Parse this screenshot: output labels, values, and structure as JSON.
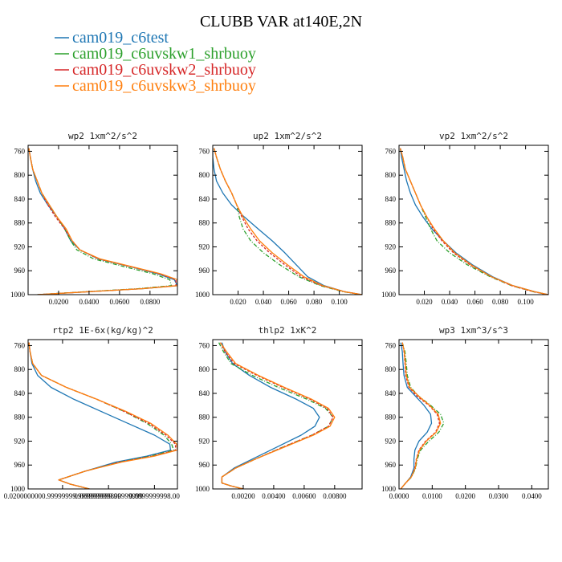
{
  "figure": {
    "title": "CLUBB VAR at140E,2N"
  },
  "legend": [
    {
      "name": "cam019_c6test",
      "color": "#1f77b4"
    },
    {
      "name": "cam019_c6uvskw1_shrbuoy",
      "color": "#2ca02c"
    },
    {
      "name": "cam019_c6uvskw2_shrbuoy",
      "color": "#d62728"
    },
    {
      "name": "cam019_c6uvskw3_shrbuoy",
      "color": "#ff7f0e"
    }
  ],
  "chart_data": [
    {
      "type": "line",
      "title": "wp2   1xm^2/s^2",
      "xlim": [
        0,
        0.098
      ],
      "ylim": [
        1000,
        750
      ],
      "xticks": [
        0.02,
        0.04,
        0.06,
        0.08
      ],
      "xtick_labels": [
        "0.0200",
        "0.0400",
        "0.0600",
        "0.0800"
      ],
      "yticks": [
        760,
        800,
        840,
        880,
        920,
        960,
        1000
      ],
      "y": [
        755,
        770,
        790,
        810,
        830,
        850,
        870,
        890,
        910,
        925,
        940,
        955,
        965,
        975,
        985,
        990,
        995,
        1000
      ],
      "series": [
        {
          "name": "cam019_c6test",
          "color": "#1f77b4",
          "dash": "",
          "values": [
            0.0005,
            0.0015,
            0.003,
            0.005,
            0.008,
            0.013,
            0.019,
            0.024,
            0.028,
            0.034,
            0.046,
            0.07,
            0.085,
            0.096,
            0.098,
            0.075,
            0.04,
            0.006
          ]
        },
        {
          "name": "cam019_c6uvskw1_shrbuoy",
          "color": "#2ca02c",
          "dash": "5,2,1,2",
          "values": [
            0.0005,
            0.0015,
            0.003,
            0.006,
            0.009,
            0.014,
            0.019,
            0.024,
            0.028,
            0.032,
            0.043,
            0.066,
            0.082,
            0.093,
            0.094,
            0.072,
            0.038,
            0.006
          ]
        },
        {
          "name": "cam019_c6uvskw2_shrbuoy",
          "color": "#d62728",
          "dash": "3,2",
          "values": [
            0.0005,
            0.0015,
            0.003,
            0.006,
            0.009,
            0.013,
            0.018,
            0.024,
            0.029,
            0.034,
            0.046,
            0.07,
            0.086,
            0.097,
            0.097,
            0.074,
            0.04,
            0.006
          ]
        },
        {
          "name": "cam019_c6uvskw3_shrbuoy",
          "color": "#ff7f0e",
          "dash": "",
          "values": [
            0.0005,
            0.0015,
            0.003,
            0.006,
            0.009,
            0.014,
            0.019,
            0.025,
            0.029,
            0.034,
            0.047,
            0.071,
            0.087,
            0.098,
            0.098,
            0.075,
            0.04,
            0.006
          ]
        }
      ]
    },
    {
      "type": "line",
      "title": "up2   1xm^2/s^2",
      "xlim": [
        0,
        0.118
      ],
      "ylim": [
        1000,
        750
      ],
      "xticks": [
        0.02,
        0.04,
        0.06,
        0.08,
        0.1
      ],
      "xtick_labels": [
        "0.020",
        "0.040",
        "0.060",
        "0.080",
        "0.100"
      ],
      "yticks": [
        760,
        800,
        840,
        880,
        920,
        960,
        1000
      ],
      "y": [
        755,
        770,
        790,
        810,
        830,
        850,
        870,
        890,
        910,
        930,
        950,
        970,
        985,
        995,
        1000
      ],
      "series": [
        {
          "name": "cam019_c6test",
          "color": "#1f77b4",
          "dash": "",
          "values": [
            0.0,
            0.0,
            0.001,
            0.003,
            0.008,
            0.015,
            0.025,
            0.036,
            0.047,
            0.057,
            0.066,
            0.075,
            0.088,
            0.104,
            0.118
          ]
        },
        {
          "name": "cam019_c6uvskw1_shrbuoy",
          "color": "#2ca02c",
          "dash": "5,2,1,2",
          "values": [
            0.001,
            0.003,
            0.006,
            0.01,
            0.015,
            0.019,
            0.021,
            0.024,
            0.03,
            0.04,
            0.053,
            0.068,
            0.085,
            0.103,
            0.118
          ]
        },
        {
          "name": "cam019_c6uvskw2_shrbuoy",
          "color": "#d62728",
          "dash": "3,2",
          "values": [
            0.001,
            0.003,
            0.006,
            0.01,
            0.015,
            0.019,
            0.023,
            0.028,
            0.035,
            0.045,
            0.057,
            0.07,
            0.086,
            0.104,
            0.118
          ]
        },
        {
          "name": "cam019_c6uvskw3_shrbuoy",
          "color": "#ff7f0e",
          "dash": "",
          "values": [
            0.001,
            0.003,
            0.006,
            0.01,
            0.015,
            0.019,
            0.024,
            0.03,
            0.037,
            0.047,
            0.059,
            0.072,
            0.087,
            0.104,
            0.118
          ]
        }
      ]
    },
    {
      "type": "line",
      "title": "vp2   1xm^2/s^2",
      "xlim": [
        0,
        0.118
      ],
      "ylim": [
        1000,
        750
      ],
      "xticks": [
        0.02,
        0.04,
        0.06,
        0.08,
        0.1
      ],
      "xtick_labels": [
        "0.020",
        "0.040",
        "0.060",
        "0.080",
        "0.100"
      ],
      "yticks": [
        760,
        800,
        840,
        880,
        920,
        960,
        1000
      ],
      "y": [
        755,
        770,
        790,
        810,
        830,
        850,
        870,
        890,
        910,
        930,
        950,
        970,
        985,
        995,
        1000
      ],
      "series": [
        {
          "name": "cam019_c6test",
          "color": "#1f77b4",
          "dash": "",
          "values": [
            0.001,
            0.002,
            0.004,
            0.006,
            0.009,
            0.013,
            0.019,
            0.026,
            0.035,
            0.045,
            0.058,
            0.074,
            0.09,
            0.107,
            0.118
          ]
        },
        {
          "name": "cam019_c6uvskw1_shrbuoy",
          "color": "#2ca02c",
          "dash": "5,2,1,2",
          "values": [
            0.001,
            0.003,
            0.005,
            0.009,
            0.013,
            0.017,
            0.021,
            0.025,
            0.03,
            0.04,
            0.054,
            0.072,
            0.089,
            0.106,
            0.118
          ]
        },
        {
          "name": "cam019_c6uvskw2_shrbuoy",
          "color": "#d62728",
          "dash": "3,2",
          "values": [
            0.001,
            0.003,
            0.005,
            0.009,
            0.013,
            0.017,
            0.022,
            0.027,
            0.034,
            0.043,
            0.056,
            0.073,
            0.089,
            0.106,
            0.118
          ]
        },
        {
          "name": "cam019_c6uvskw3_shrbuoy",
          "color": "#ff7f0e",
          "dash": "",
          "values": [
            0.001,
            0.003,
            0.005,
            0.009,
            0.013,
            0.017,
            0.022,
            0.028,
            0.035,
            0.044,
            0.057,
            0.073,
            0.09,
            0.107,
            0.118
          ]
        }
      ]
    },
    {
      "type": "line",
      "title": "rtp2   1E-6x(kg/kg)^2",
      "xlim": [
        0,
        3.9
      ],
      "ylim": [
        1000,
        750
      ],
      "xticks": [
        0.9,
        2.1,
        3.3
      ],
      "xtick_labels": [
        "0.0200000000.99999999.999999999800",
        "0.009999999.99999999",
        "0.0999999998.00"
      ],
      "yticks": [
        760,
        800,
        840,
        880,
        920,
        960,
        1000
      ],
      "y": [
        755,
        770,
        790,
        810,
        830,
        850,
        870,
        890,
        910,
        925,
        935,
        945,
        955,
        970,
        985,
        992,
        1000
      ],
      "series": [
        {
          "name": "cam019_c6test",
          "color": "#1f77b4",
          "dash": "",
          "values": [
            0.02,
            0.05,
            0.1,
            0.25,
            0.6,
            1.2,
            1.9,
            2.6,
            3.3,
            3.7,
            3.72,
            3.1,
            2.3,
            1.5,
            0.8,
            1.1,
            1.6
          ]
        },
        {
          "name": "cam019_c6uvskw1_shrbuoy",
          "color": "#2ca02c",
          "dash": "5,2,1,2",
          "values": [
            0.02,
            0.05,
            0.12,
            0.35,
            1.0,
            1.8,
            2.5,
            3.1,
            3.55,
            3.75,
            3.8,
            3.2,
            2.4,
            1.5,
            0.8,
            1.1,
            1.6
          ]
        },
        {
          "name": "cam019_c6uvskw2_shrbuoy",
          "color": "#d62728",
          "dash": "3,2",
          "values": [
            0.02,
            0.05,
            0.12,
            0.35,
            1.0,
            1.8,
            2.5,
            3.15,
            3.6,
            3.85,
            3.85,
            3.25,
            2.4,
            1.5,
            0.8,
            1.1,
            1.6
          ]
        },
        {
          "name": "cam019_c6uvskw3_shrbuoy",
          "color": "#ff7f0e",
          "dash": "",
          "values": [
            0.02,
            0.05,
            0.12,
            0.35,
            1.0,
            1.8,
            2.55,
            3.2,
            3.65,
            3.88,
            3.9,
            3.3,
            2.45,
            1.5,
            0.8,
            1.1,
            1.6
          ]
        }
      ]
    },
    {
      "type": "line",
      "title": "thlp2   1xK^2",
      "xlim": [
        0,
        0.0098
      ],
      "ylim": [
        1000,
        750
      ],
      "xticks": [
        0.002,
        0.004,
        0.006,
        0.008
      ],
      "xtick_labels": [
        "0.00200",
        "0.00400",
        "0.00600",
        "0.00800"
      ],
      "yticks": [
        760,
        800,
        840,
        880,
        920,
        960,
        1000
      ],
      "y": [
        755,
        770,
        790,
        810,
        830,
        850,
        865,
        880,
        895,
        910,
        930,
        950,
        965,
        980,
        990,
        995,
        1000
      ],
      "series": [
        {
          "name": "cam019_c6test",
          "color": "#1f77b4",
          "dash": "",
          "values": [
            0.0006,
            0.0008,
            0.0013,
            0.0024,
            0.0038,
            0.0055,
            0.0066,
            0.007,
            0.0067,
            0.0058,
            0.0042,
            0.0026,
            0.0014,
            0.0006,
            0.0006,
            0.0012,
            0.002
          ]
        },
        {
          "name": "cam019_c6uvskw1_shrbuoy",
          "color": "#2ca02c",
          "dash": "5,2,1,2",
          "values": [
            0.0004,
            0.0007,
            0.0012,
            0.0026,
            0.0043,
            0.0062,
            0.0074,
            0.0079,
            0.0076,
            0.0065,
            0.0046,
            0.0028,
            0.0015,
            0.0006,
            0.0006,
            0.0012,
            0.002
          ]
        },
        {
          "name": "cam019_c6uvskw2_shrbuoy",
          "color": "#d62728",
          "dash": "3,2",
          "values": [
            0.0005,
            0.0008,
            0.0014,
            0.0029,
            0.0046,
            0.0064,
            0.0075,
            0.0079,
            0.0076,
            0.0065,
            0.0046,
            0.0028,
            0.0015,
            0.0006,
            0.0006,
            0.0012,
            0.002
          ]
        },
        {
          "name": "cam019_c6uvskw3_shrbuoy",
          "color": "#ff7f0e",
          "dash": "",
          "values": [
            0.0005,
            0.0009,
            0.0015,
            0.003,
            0.0047,
            0.0065,
            0.0076,
            0.008,
            0.0077,
            0.0066,
            0.0047,
            0.0028,
            0.0015,
            0.0006,
            0.0006,
            0.0012,
            0.002
          ]
        }
      ]
    },
    {
      "type": "line",
      "title": "wp3   1xm^3/s^3",
      "xlim": [
        0,
        0.045
      ],
      "ylim": [
        1000,
        750
      ],
      "xticks": [
        0.0,
        0.01,
        0.02,
        0.03,
        0.04
      ],
      "xtick_labels": [
        "0.0000",
        "0.0100",
        "0.0200",
        "0.0300",
        "0.0400"
      ],
      "yticks": [
        760,
        800,
        840,
        880,
        920,
        960,
        1000
      ],
      "y": [
        755,
        770,
        790,
        810,
        830,
        845,
        860,
        875,
        890,
        905,
        920,
        935,
        950,
        965,
        980,
        990,
        1000
      ],
      "series": [
        {
          "name": "cam019_c6test",
          "color": "#1f77b4",
          "dash": "",
          "values": [
            0.0005,
            0.001,
            0.0012,
            0.0015,
            0.0025,
            0.005,
            0.0075,
            0.0095,
            0.0098,
            0.0085,
            0.006,
            0.0048,
            0.0045,
            0.0045,
            0.0035,
            0.002,
            0.0005
          ]
        },
        {
          "name": "cam019_c6uvskw1_shrbuoy",
          "color": "#2ca02c",
          "dash": "5,2,1,2",
          "values": [
            0.001,
            0.0018,
            0.0022,
            0.0025,
            0.0035,
            0.006,
            0.0095,
            0.0125,
            0.0135,
            0.012,
            0.009,
            0.0065,
            0.0055,
            0.005,
            0.0038,
            0.002,
            0.0005
          ]
        },
        {
          "name": "cam019_c6uvskw2_shrbuoy",
          "color": "#d62728",
          "dash": "3,2",
          "values": [
            0.001,
            0.0015,
            0.0018,
            0.002,
            0.003,
            0.0055,
            0.009,
            0.0115,
            0.0122,
            0.011,
            0.008,
            0.006,
            0.0052,
            0.0048,
            0.0037,
            0.002,
            0.0005
          ]
        },
        {
          "name": "cam019_c6uvskw3_shrbuoy",
          "color": "#ff7f0e",
          "dash": "",
          "values": [
            0.001,
            0.0016,
            0.0019,
            0.0022,
            0.0032,
            0.006,
            0.0092,
            0.0118,
            0.0125,
            0.0112,
            0.0082,
            0.0062,
            0.0053,
            0.0049,
            0.0037,
            0.002,
            0.0005
          ]
        }
      ]
    }
  ]
}
